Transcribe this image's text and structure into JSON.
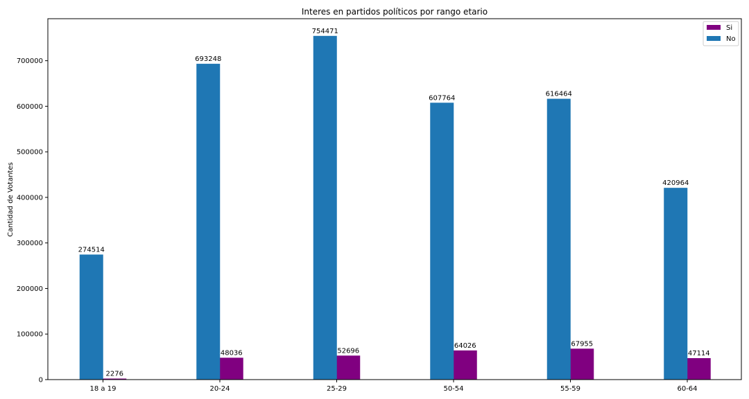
{
  "chart_data": {
    "type": "bar",
    "title": "Interes en partidos políticos por rango etario",
    "xlabel": "",
    "ylabel": "Cantidad de Votantes",
    "categories": [
      "18 a 19",
      "20-24",
      "25-29",
      "50-54",
      "55-59",
      "60-64"
    ],
    "series": [
      {
        "name": "Si",
        "color": "#800080",
        "values": [
          2276,
          48036,
          52696,
          64026,
          67955,
          47114
        ]
      },
      {
        "name": "No",
        "color": "#1f77b4",
        "values": [
          274514,
          693248,
          754471,
          607764,
          616464,
          420964
        ]
      }
    ],
    "ylim": [
      0,
      792195
    ],
    "yticks": [
      0,
      100000,
      200000,
      300000,
      400000,
      500000,
      600000,
      700000
    ],
    "grid": false,
    "legend_position": "top-right"
  }
}
